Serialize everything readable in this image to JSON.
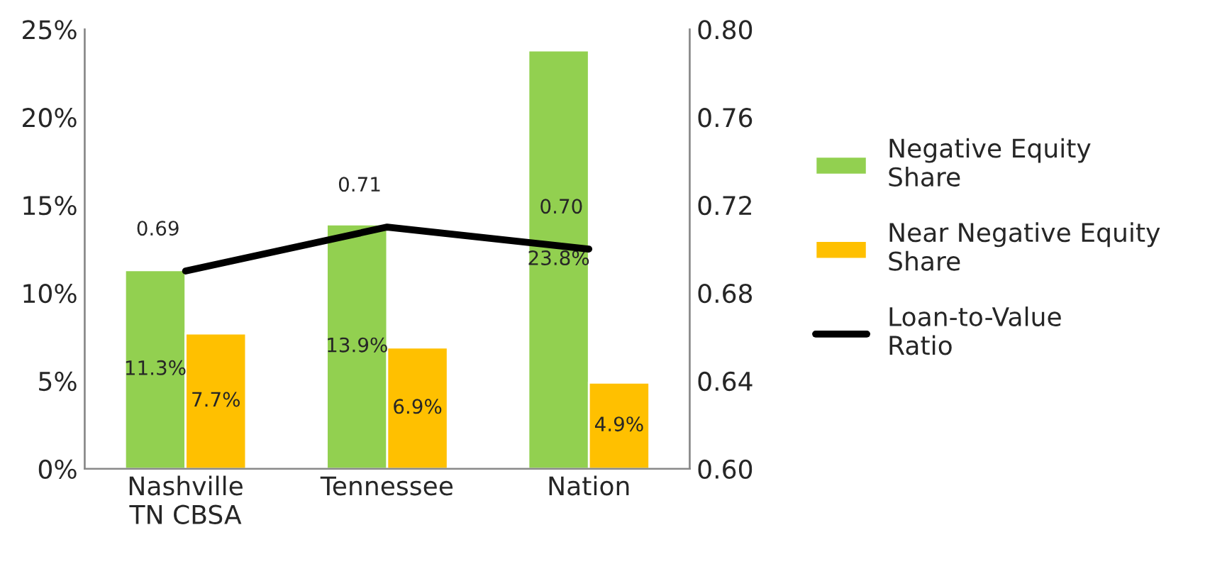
{
  "chart_data": {
    "type": "bar",
    "categories": [
      "Nashville\nTN CBSA",
      "Tennessee",
      "Nation"
    ],
    "series": [
      {
        "name": "Negative Equity Share",
        "color": "#92d050",
        "values": [
          11.3,
          13.9,
          23.8
        ],
        "value_labels": [
          "11.3%",
          "13.9%",
          "23.8%"
        ]
      },
      {
        "name": "Near Negative Equity Share",
        "color": "#ffc000",
        "values": [
          7.7,
          6.9,
          4.9
        ],
        "value_labels": [
          "7.7%",
          "6.9%",
          "4.9%"
        ]
      },
      {
        "name": "Loan-to-Value Ratio",
        "type": "line",
        "axis": "y2",
        "color": "#000000",
        "values": [
          0.69,
          0.71,
          0.7
        ],
        "value_labels": [
          "0.69",
          "0.71",
          "0.70"
        ]
      }
    ],
    "ylim": [
      0,
      25
    ],
    "yticks": [
      {
        "value": 0,
        "label": "0%"
      },
      {
        "value": 5,
        "label": "5%"
      },
      {
        "value": 10,
        "label": "10%"
      },
      {
        "value": 15,
        "label": "15%"
      },
      {
        "value": 20,
        "label": "20%"
      },
      {
        "value": 25,
        "label": "25%"
      }
    ],
    "y2lim": [
      0.6,
      0.8
    ],
    "y2ticks": [
      {
        "value": 0.6,
        "label": "0.60"
      },
      {
        "value": 0.64,
        "label": "0.64"
      },
      {
        "value": 0.68,
        "label": "0.68"
      },
      {
        "value": 0.72,
        "label": "0.72"
      },
      {
        "value": 0.76,
        "label": "0.76"
      },
      {
        "value": 0.8,
        "label": "0.80"
      }
    ],
    "grid": false,
    "legend": "right",
    "marker": "none",
    "line_style": "solid"
  }
}
